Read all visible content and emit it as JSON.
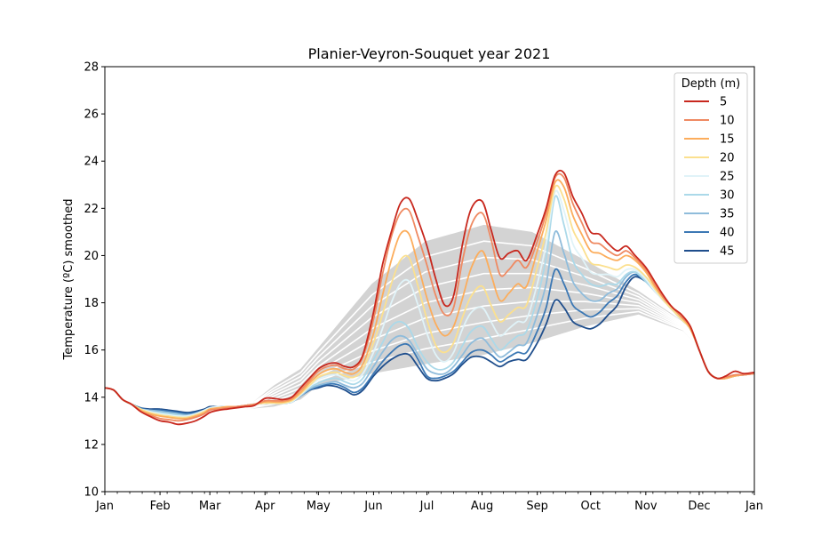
{
  "chart_data": {
    "type": "line",
    "title": "Planier-Veyron-Souquet year 2021",
    "xlabel": "",
    "ylabel": "Temperature (ºC) smoothed",
    "ylim": [
      10,
      28
    ],
    "xlim": [
      0,
      365
    ],
    "yticks": [
      10,
      12,
      14,
      16,
      18,
      20,
      22,
      24,
      26,
      28
    ],
    "xticks": [
      {
        "label": "Jan",
        "day": 0
      },
      {
        "label": "Feb",
        "day": 31
      },
      {
        "label": "Mar",
        "day": 59
      },
      {
        "label": "Apr",
        "day": 90
      },
      {
        "label": "May",
        "day": 120
      },
      {
        "label": "Jun",
        "day": 151
      },
      {
        "label": "Jul",
        "day": 181
      },
      {
        "label": "Aug",
        "day": 212
      },
      {
        "label": "Sep",
        "day": 243
      },
      {
        "label": "Oct",
        "day": 273
      },
      {
        "label": "Nov",
        "day": 304
      },
      {
        "label": "Dec",
        "day": 334
      },
      {
        "label": "Jan",
        "day": 365
      }
    ],
    "legend_title": "Depth (m)",
    "legend_position": "top-right",
    "grid": false,
    "envelope_color": "#d3d3d3",
    "climatology_color": "#ffffff",
    "envelope": {
      "x": [
        80,
        95,
        110,
        120,
        150,
        180,
        213,
        240,
        270,
        300,
        325,
        335
      ],
      "lower": [
        13.5,
        13.6,
        13.9,
        14.5,
        15.0,
        15.4,
        15.8,
        16.3,
        17.0,
        17.5,
        16.8,
        16.0
      ],
      "upper": [
        13.6,
        14.5,
        15.2,
        16.1,
        18.8,
        20.6,
        21.3,
        21.0,
        19.8,
        18.5,
        17.2,
        16.2
      ]
    },
    "x": [
      0,
      5,
      10,
      15,
      20,
      25,
      31,
      36,
      41,
      46,
      51,
      56,
      59,
      64,
      69,
      74,
      79,
      84,
      90,
      95,
      100,
      105,
      110,
      115,
      120,
      125,
      130,
      135,
      140,
      145,
      151,
      156,
      161,
      166,
      171,
      176,
      181,
      186,
      191,
      196,
      201,
      206,
      212,
      217,
      222,
      227,
      232,
      237,
      243,
      248,
      253,
      258,
      263,
      268,
      273,
      278,
      283,
      288,
      293,
      298,
      304,
      309,
      314,
      319,
      324,
      329,
      334,
      339,
      344,
      349,
      354,
      359,
      365
    ],
    "series": [
      {
        "name": "5",
        "color": "#c8281e",
        "values": [
          14.4,
          14.3,
          13.9,
          13.7,
          13.4,
          13.2,
          13.0,
          12.95,
          12.85,
          12.9,
          13.0,
          13.2,
          13.35,
          13.45,
          13.5,
          13.55,
          13.6,
          13.65,
          13.95,
          13.95,
          13.9,
          14.0,
          14.4,
          14.8,
          15.2,
          15.4,
          15.45,
          15.3,
          15.3,
          15.8,
          17.6,
          19.6,
          21.0,
          22.2,
          22.4,
          21.5,
          20.4,
          19.0,
          17.9,
          18.3,
          20.5,
          22.0,
          22.3,
          21.1,
          19.9,
          20.1,
          20.2,
          19.8,
          20.9,
          22.0,
          23.4,
          23.5,
          22.5,
          21.8,
          21.0,
          20.9,
          20.5,
          20.2,
          20.4,
          20.0,
          19.5,
          18.9,
          18.3,
          17.8,
          17.5,
          17.0,
          16.0,
          15.1,
          14.8,
          14.9,
          15.1,
          15.0,
          15.05
        ]
      },
      {
        "name": "10",
        "color": "#ef8a62",
        "values": [
          14.4,
          14.3,
          13.9,
          13.7,
          13.4,
          13.25,
          13.1,
          13.05,
          13.0,
          13.05,
          13.15,
          13.3,
          13.45,
          13.5,
          13.55,
          13.6,
          13.65,
          13.7,
          13.85,
          13.85,
          13.85,
          13.95,
          14.3,
          14.7,
          15.1,
          15.3,
          15.35,
          15.2,
          15.2,
          15.7,
          17.3,
          19.2,
          20.8,
          21.8,
          21.9,
          20.8,
          19.6,
          18.3,
          17.5,
          17.8,
          19.8,
          21.3,
          21.8,
          20.7,
          19.2,
          19.4,
          19.8,
          19.5,
          20.6,
          21.8,
          23.3,
          23.3,
          22.2,
          21.4,
          20.6,
          20.5,
          20.2,
          20.0,
          20.2,
          19.9,
          19.4,
          18.8,
          18.2,
          17.8,
          17.4,
          17.0,
          16.0,
          15.1,
          14.8,
          14.85,
          14.95,
          14.95,
          15.0
        ]
      },
      {
        "name": "15",
        "color": "#fcad5c",
        "values": [
          14.4,
          14.3,
          13.9,
          13.7,
          13.45,
          13.3,
          13.2,
          13.15,
          13.1,
          13.1,
          13.2,
          13.35,
          13.5,
          13.55,
          13.6,
          13.6,
          13.65,
          13.7,
          13.8,
          13.8,
          13.8,
          13.9,
          14.2,
          14.6,
          14.95,
          15.15,
          15.2,
          15.05,
          15.0,
          15.4,
          16.7,
          18.3,
          19.8,
          20.9,
          20.9,
          19.6,
          18.2,
          17.1,
          16.6,
          17.0,
          18.2,
          19.5,
          20.2,
          19.2,
          18.1,
          18.4,
          18.8,
          18.7,
          20.2,
          21.5,
          23.1,
          22.9,
          21.7,
          20.9,
          20.2,
          20.1,
          19.9,
          19.8,
          20.0,
          19.8,
          19.3,
          18.7,
          18.2,
          17.8,
          17.4,
          16.9,
          16.0,
          15.1,
          14.8,
          14.8,
          14.9,
          14.95,
          15.0
        ]
      },
      {
        "name": "20",
        "color": "#fbe08f",
        "values": [
          14.4,
          14.3,
          13.9,
          13.7,
          13.5,
          13.35,
          13.25,
          13.2,
          13.15,
          13.15,
          13.25,
          13.4,
          13.5,
          13.55,
          13.6,
          13.6,
          13.65,
          13.7,
          13.75,
          13.75,
          13.75,
          13.85,
          14.15,
          14.5,
          14.85,
          15.0,
          15.05,
          14.9,
          14.85,
          15.2,
          16.3,
          17.5,
          18.8,
          19.8,
          19.9,
          18.7,
          17.3,
          16.2,
          15.9,
          16.3,
          17.4,
          18.3,
          18.7,
          17.9,
          17.2,
          17.5,
          17.8,
          17.9,
          19.5,
          21.0,
          22.9,
          22.4,
          21.1,
          20.4,
          19.7,
          19.6,
          19.5,
          19.4,
          19.6,
          19.5,
          19.1,
          18.6,
          18.1,
          17.7,
          17.3,
          16.9,
          16.0,
          15.1,
          14.8,
          14.8,
          14.9,
          14.95,
          15.0
        ]
      },
      {
        "name": "25",
        "color": "#e0f3f8",
        "values": [
          14.4,
          14.3,
          13.9,
          13.7,
          13.5,
          13.4,
          13.3,
          13.25,
          13.2,
          13.2,
          13.3,
          13.45,
          13.55,
          13.6,
          13.6,
          13.6,
          13.65,
          13.7,
          13.75,
          13.75,
          13.75,
          13.8,
          14.1,
          14.45,
          14.75,
          14.9,
          14.95,
          14.8,
          14.7,
          15.0,
          15.9,
          16.9,
          18.0,
          18.8,
          18.9,
          17.9,
          16.7,
          15.8,
          15.5,
          15.9,
          16.9,
          17.6,
          17.8,
          17.2,
          16.6,
          16.9,
          17.2,
          17.3,
          18.8,
          20.5,
          22.7,
          21.9,
          20.5,
          19.9,
          19.3,
          19.2,
          19.2,
          19.1,
          19.4,
          19.4,
          19.0,
          18.5,
          18.1,
          17.7,
          17.3,
          16.9,
          16.0,
          15.1,
          14.8,
          14.8,
          14.9,
          14.95,
          15.0
        ]
      },
      {
        "name": "30",
        "color": "#abd9e9",
        "values": [
          14.4,
          14.3,
          13.9,
          13.7,
          13.5,
          13.4,
          13.35,
          13.3,
          13.25,
          13.2,
          13.3,
          13.45,
          13.55,
          13.6,
          13.6,
          13.6,
          13.65,
          13.7,
          13.75,
          13.75,
          13.75,
          13.8,
          14.1,
          14.4,
          14.6,
          14.75,
          14.8,
          14.65,
          14.55,
          14.8,
          15.6,
          16.3,
          17.0,
          17.2,
          16.9,
          16.1,
          15.5,
          15.2,
          15.2,
          15.5,
          16.2,
          16.8,
          17.0,
          16.5,
          16.0,
          16.3,
          16.6,
          16.8,
          18.2,
          19.9,
          22.5,
          21.3,
          19.8,
          19.2,
          18.8,
          18.7,
          18.8,
          18.8,
          19.2,
          19.3,
          18.9,
          18.5,
          18.1,
          17.7,
          17.3,
          16.9,
          16.0,
          15.1,
          14.8,
          14.8,
          14.9,
          14.95,
          15.0
        ]
      },
      {
        "name": "35",
        "color": "#8fbcdb",
        "values": [
          14.4,
          14.3,
          13.9,
          13.7,
          13.5,
          13.45,
          13.4,
          13.35,
          13.3,
          13.25,
          13.3,
          13.45,
          13.55,
          13.6,
          13.6,
          13.6,
          13.65,
          13.7,
          13.75,
          13.75,
          13.75,
          13.8,
          14.05,
          14.35,
          14.5,
          14.6,
          14.65,
          14.5,
          14.4,
          14.6,
          15.3,
          15.9,
          16.4,
          16.6,
          16.4,
          15.8,
          15.2,
          15.0,
          15.0,
          15.3,
          15.8,
          16.3,
          16.5,
          16.1,
          15.7,
          15.9,
          16.2,
          16.3,
          17.5,
          18.8,
          21.0,
          20.1,
          18.9,
          18.4,
          18.1,
          18.1,
          18.4,
          18.6,
          19.1,
          19.3,
          18.9,
          18.5,
          18.1,
          17.7,
          17.3,
          16.9,
          16.0,
          15.1,
          14.8,
          14.8,
          14.9,
          14.95,
          15.0
        ]
      },
      {
        "name": "40",
        "color": "#3c78b4",
        "values": [
          14.4,
          14.3,
          13.9,
          13.7,
          13.55,
          13.45,
          13.45,
          13.4,
          13.35,
          13.3,
          13.35,
          13.45,
          13.55,
          13.6,
          13.6,
          13.6,
          13.65,
          13.7,
          13.75,
          13.75,
          13.75,
          13.8,
          14.05,
          14.3,
          14.45,
          14.55,
          14.55,
          14.4,
          14.2,
          14.4,
          15.0,
          15.5,
          15.9,
          16.2,
          16.2,
          15.6,
          14.9,
          14.8,
          14.9,
          15.1,
          15.5,
          15.9,
          16.0,
          15.8,
          15.5,
          15.7,
          15.9,
          15.9,
          16.8,
          17.8,
          19.4,
          18.8,
          17.9,
          17.6,
          17.4,
          17.6,
          18.0,
          18.3,
          18.9,
          19.2,
          18.9,
          18.5,
          18.1,
          17.7,
          17.3,
          16.9,
          16.0,
          15.1,
          14.8,
          14.8,
          14.9,
          14.95,
          15.0
        ]
      },
      {
        "name": "45",
        "color": "#1f4e8c",
        "values": [
          14.4,
          14.3,
          13.9,
          13.7,
          13.55,
          13.5,
          13.5,
          13.45,
          13.4,
          13.35,
          13.4,
          13.5,
          13.6,
          13.6,
          13.6,
          13.6,
          13.65,
          13.7,
          13.75,
          13.75,
          13.75,
          13.8,
          14.05,
          14.3,
          14.4,
          14.5,
          14.45,
          14.3,
          14.1,
          14.3,
          14.9,
          15.3,
          15.6,
          15.8,
          15.8,
          15.3,
          14.8,
          14.7,
          14.8,
          15.0,
          15.4,
          15.7,
          15.7,
          15.5,
          15.3,
          15.5,
          15.6,
          15.6,
          16.3,
          17.1,
          18.1,
          17.8,
          17.2,
          17.0,
          16.9,
          17.1,
          17.5,
          17.9,
          18.7,
          19.1,
          18.9,
          18.5,
          18.1,
          17.7,
          17.3,
          16.9,
          16.0,
          15.1,
          14.8,
          14.8,
          14.9,
          14.95,
          15.0
        ]
      }
    ]
  }
}
